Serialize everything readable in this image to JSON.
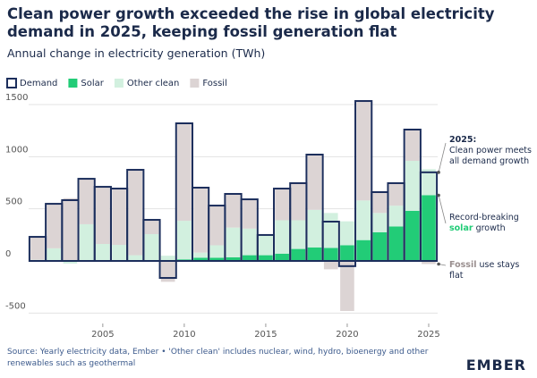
{
  "chart_data": {
    "type": "bar",
    "title": "Clean power growth exceeded the rise in global electricity demand in 2025, keeping fossil generation flat",
    "subtitle": "Annual change in electricity generation (TWh)",
    "x": [
      2001,
      2002,
      2003,
      2004,
      2005,
      2006,
      2007,
      2008,
      2009,
      2010,
      2011,
      2012,
      2013,
      2014,
      2015,
      2016,
      2017,
      2018,
      2019,
      2020,
      2021,
      2022,
      2023,
      2024,
      2025
    ],
    "series": [
      {
        "name": "Demand",
        "color": "#1c2e5c",
        "style": "outline",
        "values": [
          231,
          548,
          583,
          788,
          711,
          694,
          874,
          394,
          -163,
          1320,
          703,
          531,
          643,
          591,
          249,
          694,
          746,
          1020,
          377,
          -50,
          1534,
          660,
          746,
          1260,
          850
        ]
      },
      {
        "name": "Solar",
        "color": "#22cc77",
        "values": [
          1,
          1,
          2,
          2,
          3,
          4,
          5,
          7,
          10,
          15,
          30,
          30,
          35,
          55,
          55,
          70,
          115,
          130,
          125,
          150,
          200,
          275,
          330,
          480,
          630
        ]
      },
      {
        "name": "Other clean",
        "color": "#d2f0df",
        "values": [
          10,
          120,
          -25,
          350,
          160,
          150,
          50,
          250,
          40,
          370,
          50,
          120,
          285,
          255,
          195,
          320,
          275,
          360,
          335,
          230,
          380,
          185,
          200,
          480,
          250
        ]
      },
      {
        "name": "Fossil",
        "color": "#dcd4d4",
        "values": [
          220,
          430,
          600,
          440,
          550,
          545,
          820,
          145,
          -200,
          935,
          620,
          380,
          320,
          280,
          0,
          300,
          355,
          530,
          -80,
          -480,
          950,
          200,
          215,
          300,
          -30
        ]
      }
    ],
    "xlim": [
      2000.45,
      2025.55
    ],
    "xticks": [
      2005,
      2010,
      2015,
      2020,
      2025
    ],
    "ylim": [
      -600,
      1650
    ],
    "yticks": [
      -500,
      0,
      500,
      1000,
      1500
    ],
    "grid": true,
    "annotations": [
      {
        "title": "2025:",
        "text": "Clean power meets all demand growth"
      },
      {
        "parts": [
          "Record-breaking",
          "solar",
          "growth"
        ]
      },
      {
        "parts": [
          "Fossil",
          "use stays flat"
        ]
      }
    ],
    "source": "Source: Yearly electricity data, Ember • 'Other clean' includes nuclear, wind, hydro, bioenergy and other renewables such as geothermal",
    "logo": "EMBER"
  }
}
